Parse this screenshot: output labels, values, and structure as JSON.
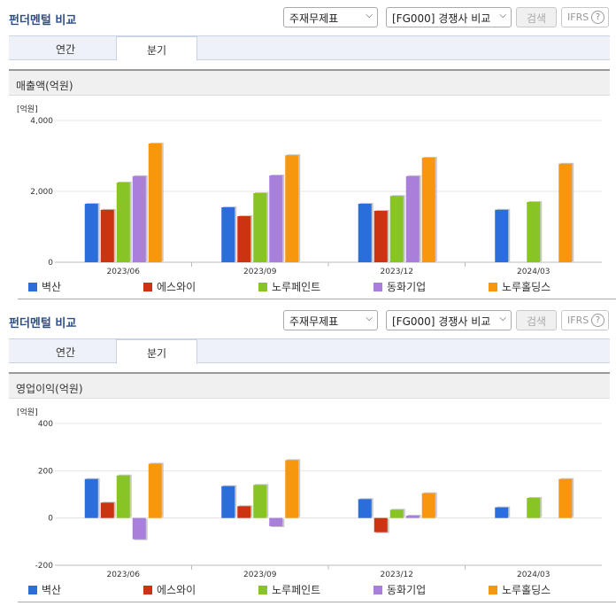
{
  "panels": [
    {
      "title": "펀더멘털 비교",
      "statement_select": "주재무제표",
      "compare_select": "[FG000] 경쟁사 비교",
      "search_label": "검색",
      "ifrs_label": "IFRS",
      "help_glyph": "?",
      "tabs": [
        {
          "label": "연간"
        },
        {
          "label": "분기"
        }
      ],
      "active_tab": "분기",
      "section_title": "매출액(억원)",
      "unit": "[억원]",
      "legend": [
        {
          "label": "벽산",
          "color": "#2b6ddb"
        },
        {
          "label": "에스와이",
          "color": "#cc3311"
        },
        {
          "label": "노루페인트",
          "color": "#88c425"
        },
        {
          "label": "동화기업",
          "color": "#a97fdc"
        },
        {
          "label": "노루홀딩스",
          "color": "#f7970e"
        }
      ]
    },
    {
      "title": "펀더멘털 비교",
      "statement_select": "주재무제표",
      "compare_select": "[FG000] 경쟁사 비교",
      "search_label": "검색",
      "ifrs_label": "IFRS",
      "help_glyph": "?",
      "tabs": [
        {
          "label": "연간"
        },
        {
          "label": "분기"
        }
      ],
      "active_tab": "분기",
      "section_title": "영업이익(억원)",
      "unit": "[억원]",
      "legend": [
        {
          "label": "벽산",
          "color": "#2b6ddb"
        },
        {
          "label": "에스와이",
          "color": "#cc3311"
        },
        {
          "label": "노루페인트",
          "color": "#88c425"
        },
        {
          "label": "동화기업",
          "color": "#a97fdc"
        },
        {
          "label": "노루홀딩스",
          "color": "#f7970e"
        }
      ]
    }
  ],
  "chart_data": [
    {
      "type": "bar",
      "categories": [
        "2023/06",
        "2023/09",
        "2023/12",
        "2024/03"
      ],
      "ylim": [
        0,
        4000
      ],
      "yticks": [
        "0",
        "2,000",
        "4,000"
      ],
      "ytick_values": [
        0,
        2000,
        4000
      ],
      "ylabel": "[억원]",
      "grid": true,
      "legend_position": "bottom",
      "series": [
        {
          "name": "벽산",
          "color": "#2b6ddb",
          "values": [
            1650,
            1550,
            1650,
            1480
          ]
        },
        {
          "name": "에스와이",
          "color": "#cc3311",
          "values": [
            1480,
            1300,
            1450,
            null
          ]
        },
        {
          "name": "노루페인트",
          "color": "#88c425",
          "values": [
            2250,
            1950,
            1870,
            1700
          ]
        },
        {
          "name": "동화기업",
          "color": "#a97fdc",
          "values": [
            2430,
            2450,
            2430,
            null
          ]
        },
        {
          "name": "노루홀딩스",
          "color": "#f7970e",
          "values": [
            3350,
            3020,
            2950,
            2780
          ]
        }
      ]
    },
    {
      "type": "bar",
      "categories": [
        "2023/06",
        "2023/09",
        "2023/12",
        "2024/03"
      ],
      "ylim": [
        -200,
        400
      ],
      "yticks": [
        "-200",
        "0",
        "200",
        "400"
      ],
      "ytick_values": [
        -200,
        0,
        200,
        400
      ],
      "ylabel": "[억원]",
      "grid": true,
      "legend_position": "bottom",
      "series": [
        {
          "name": "벽산",
          "color": "#2b6ddb",
          "values": [
            165,
            135,
            80,
            45
          ]
        },
        {
          "name": "에스와이",
          "color": "#cc3311",
          "values": [
            65,
            50,
            -60,
            null
          ]
        },
        {
          "name": "노루페인트",
          "color": "#88c425",
          "values": [
            180,
            140,
            35,
            85
          ]
        },
        {
          "name": "동화기업",
          "color": "#a97fdc",
          "values": [
            -90,
            -35,
            10,
            null
          ]
        },
        {
          "name": "노루홀딩스",
          "color": "#f7970e",
          "values": [
            230,
            245,
            105,
            165
          ]
        }
      ]
    }
  ]
}
